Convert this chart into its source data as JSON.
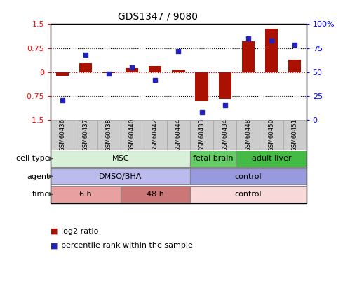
{
  "title": "GDS1347 / 9080",
  "samples": [
    "GSM60436",
    "GSM60437",
    "GSM60438",
    "GSM60440",
    "GSM60442",
    "GSM60444",
    "GSM60433",
    "GSM60434",
    "GSM60448",
    "GSM60450",
    "GSM60451"
  ],
  "log2_ratio": [
    -0.12,
    0.28,
    -0.03,
    0.12,
    0.18,
    0.05,
    -0.92,
    -0.85,
    0.95,
    1.35,
    0.38
  ],
  "percentile_rank": [
    20,
    68,
    48,
    55,
    42,
    72,
    8,
    15,
    85,
    83,
    78
  ],
  "ylim_left": [
    -1.5,
    1.5
  ],
  "ylim_right": [
    0,
    100
  ],
  "yticks_left": [
    -1.5,
    -0.75,
    0,
    0.75,
    1.5
  ],
  "yticks_right": [
    0,
    25,
    50,
    75,
    100
  ],
  "ytick_labels_right": [
    "0",
    "25",
    "50",
    "75",
    "100%"
  ],
  "bar_color": "#aa1100",
  "dot_color": "#2222bb",
  "cell_type_groups": [
    {
      "label": "MSC",
      "start": 0,
      "end": 6,
      "color": "#d8f0d8",
      "edgecolor": "#888888"
    },
    {
      "label": "fetal brain",
      "start": 6,
      "end": 8,
      "color": "#66cc66",
      "edgecolor": "#888888"
    },
    {
      "label": "adult liver",
      "start": 8,
      "end": 11,
      "color": "#44bb44",
      "edgecolor": "#888888"
    }
  ],
  "agent_groups": [
    {
      "label": "DMSO/BHA",
      "start": 0,
      "end": 6,
      "color": "#bbbbee",
      "edgecolor": "#888888"
    },
    {
      "label": "control",
      "start": 6,
      "end": 11,
      "color": "#9999dd",
      "edgecolor": "#888888"
    }
  ],
  "time_groups": [
    {
      "label": "6 h",
      "start": 0,
      "end": 3,
      "color": "#e8a0a0",
      "edgecolor": "#888888"
    },
    {
      "label": "48 h",
      "start": 3,
      "end": 6,
      "color": "#cc7777",
      "edgecolor": "#888888"
    },
    {
      "label": "control",
      "start": 6,
      "end": 11,
      "color": "#f8d8d8",
      "edgecolor": "#888888"
    }
  ],
  "row_labels": [
    "cell type",
    "agent",
    "time"
  ],
  "legend_items": [
    {
      "label": "log2 ratio",
      "color": "#aa1100"
    },
    {
      "label": "percentile rank within the sample",
      "color": "#2222bb"
    }
  ],
  "bg_color": "#ffffff",
  "tick_bg_color": "#cccccc",
  "border_color": "#000000"
}
